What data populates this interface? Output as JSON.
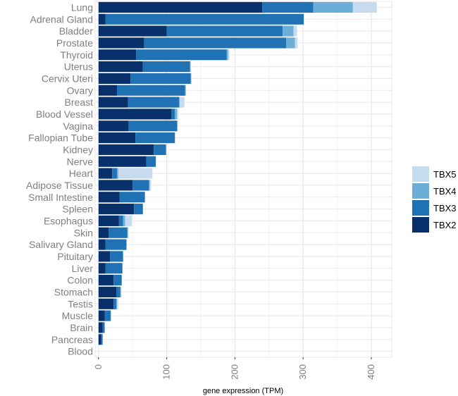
{
  "chart_data": {
    "type": "bar",
    "orientation": "horizontal",
    "stacked": true,
    "xlabel": "gene expression (TPM)",
    "xlim": [
      -5,
      430
    ],
    "xticks": [
      0,
      100,
      200,
      300,
      400
    ],
    "grid": true,
    "legend_position": "right",
    "categories": [
      "Lung",
      "Adrenal Gland",
      "Bladder",
      "Prostate",
      "Thyroid",
      "Uterus",
      "Cervix Uteri",
      "Ovary",
      "Breast",
      "Blood Vessel",
      "Vagina",
      "Fallopian Tube",
      "Kidney",
      "Nerve",
      "Heart",
      "Adipose Tissue",
      "Small Intestine",
      "Spleen",
      "Esophagus",
      "Skin",
      "Salivary Gland",
      "Pituitary",
      "Liver",
      "Colon",
      "Stomach",
      "Testis",
      "Muscle",
      "Brain",
      "Pancreas",
      "Blood"
    ],
    "series": [
      {
        "name": "TBX2",
        "color": "#08306b",
        "values": [
          240,
          10,
          100,
          67,
          55,
          65,
          47,
          27,
          43,
          107,
          44,
          54,
          81,
          70,
          20,
          50,
          31,
          52,
          30,
          15,
          10,
          17,
          10,
          22,
          26,
          22,
          9,
          6,
          4,
          0
        ]
      },
      {
        "name": "TBX3",
        "color": "#2171b5",
        "values": [
          75,
          291,
          170,
          208,
          133,
          69,
          88,
          100,
          75,
          5,
          71,
          58,
          18,
          14,
          7,
          24,
          37,
          13,
          6,
          27,
          31,
          19,
          25,
          12,
          6,
          4,
          9,
          3,
          2,
          0
        ]
      },
      {
        "name": "TBX4",
        "color": "#6baed6",
        "values": [
          58,
          0,
          16,
          13,
          2,
          1,
          1,
          1,
          1,
          3,
          1,
          0,
          0,
          0,
          2,
          1,
          0,
          0,
          3,
          1,
          0,
          0,
          0,
          0,
          1,
          1,
          0,
          0,
          0,
          0
        ]
      },
      {
        "name": "TBX5",
        "color": "#c6dbef",
        "values": [
          35,
          0,
          5,
          4,
          2,
          0,
          0,
          0,
          7,
          2,
          0,
          0,
          0,
          0,
          50,
          2,
          0,
          0,
          10,
          1,
          0,
          0,
          0,
          0,
          0,
          2,
          0,
          0,
          0,
          0
        ]
      }
    ],
    "legend_order": [
      "TBX5",
      "TBX4",
      "TBX3",
      "TBX2"
    ]
  }
}
